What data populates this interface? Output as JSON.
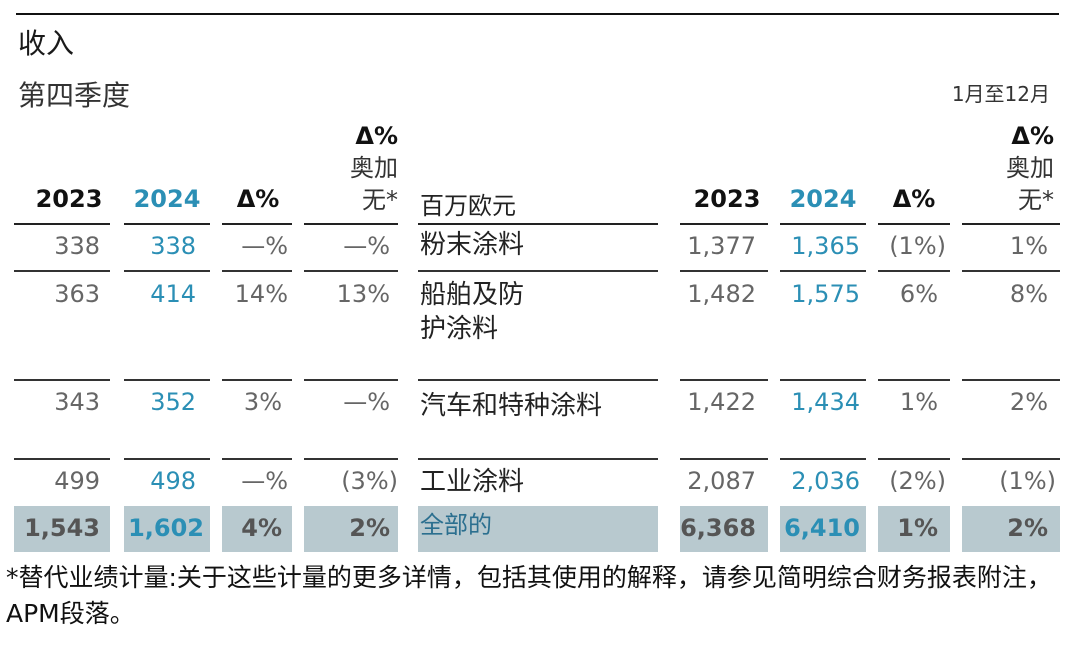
{
  "title": "收入",
  "subtitle": "第四季度",
  "period_label": "1月至12月",
  "headers": {
    "year_prev": "2023",
    "year_cur": "2024",
    "delta": "Δ%",
    "organic_delta": "Δ%",
    "organic_line1": "奥加",
    "organic_line2": "无*",
    "unit": "百万欧元"
  },
  "rows": [
    {
      "label": "粉末涂料",
      "q_prev": "338",
      "q_cur": "338",
      "q_delta": "—%",
      "q_org": "—%",
      "y_prev": "1,377",
      "y_cur": "1,365",
      "y_delta": "(1%)",
      "y_org": "1%"
    },
    {
      "label_line1": "船舶及防",
      "label_line2": "护涂料",
      "q_prev": "363",
      "q_cur": "414",
      "q_delta": "14%",
      "q_org": "13%",
      "y_prev": "1,482",
      "y_cur": "1,575",
      "y_delta": "6%",
      "y_org": "8%"
    },
    {
      "label": "汽车和特种涂料",
      "q_prev": "343",
      "q_cur": "352",
      "q_delta": "3%",
      "q_org": "—%",
      "y_prev": "1,422",
      "y_cur": "1,434",
      "y_delta": "1%",
      "y_org": "2%"
    },
    {
      "label": "工业涂料",
      "q_prev": "499",
      "q_cur": "498",
      "q_delta": "—%",
      "q_org": "(3%)",
      "y_prev": "2,087",
      "y_cur": "2,036",
      "y_delta": "(2%)",
      "y_org": "(1%)"
    }
  ],
  "total": {
    "label": "全部的",
    "q_prev": "1,543",
    "q_cur": "1,602",
    "q_delta": "4%",
    "q_org": "2%",
    "y_prev": "6,368",
    "y_cur": "6,410",
    "y_delta": "1%",
    "y_org": "2%"
  },
  "footnote": "*替代业绩计量:关于这些计量的更多详情，包括其使用的解释，请参见简明综合财务报表附注，APM段落。"
}
